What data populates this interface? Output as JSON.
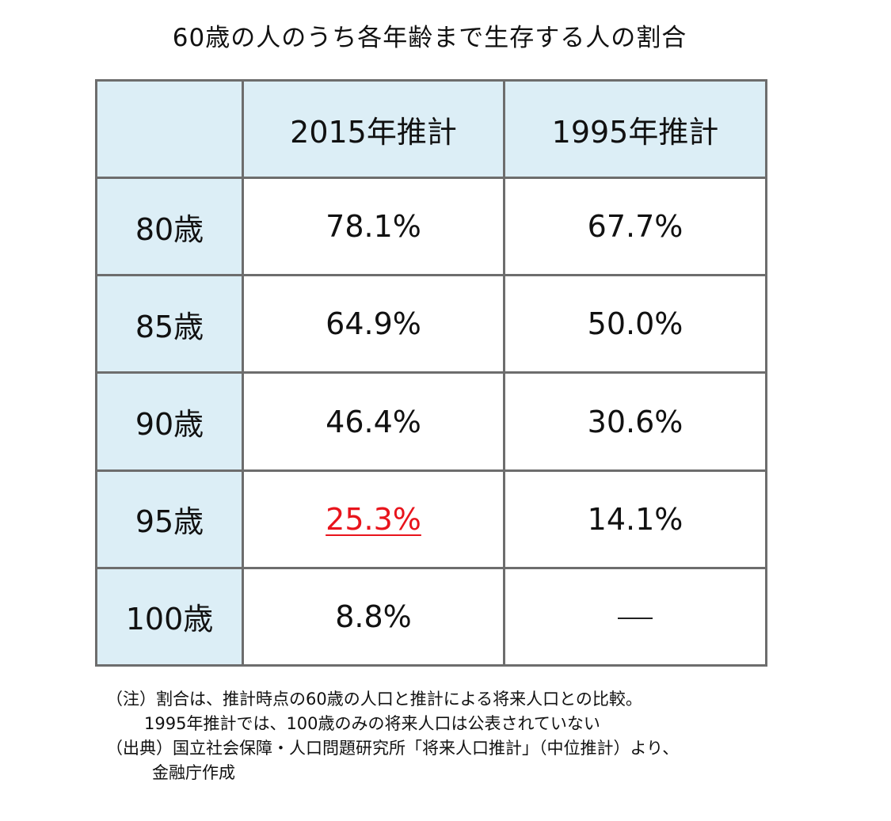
{
  "title": "60歳の人のうち各年齢まで生存する人の割合",
  "chart_data": {
    "type": "table",
    "title": "60歳の人のうち各年齢まで生存する人の割合",
    "columns": [
      "",
      "2015年推計",
      "1995年推計"
    ],
    "rows": [
      {
        "label": "80歳",
        "values": [
          "78.1%",
          "67.7%"
        ]
      },
      {
        "label": "85歳",
        "values": [
          "64.9%",
          "50.0%"
        ]
      },
      {
        "label": "90歳",
        "values": [
          "46.4%",
          "30.6%"
        ]
      },
      {
        "label": "95歳",
        "values": [
          "25.3%",
          "14.1%"
        ]
      },
      {
        "label": "100歳",
        "values": [
          "8.8%",
          "—"
        ]
      }
    ],
    "series": [
      {
        "name": "2015年推計",
        "values": [
          78.1,
          64.9,
          46.4,
          25.3,
          8.8
        ]
      },
      {
        "name": "1995年推計",
        "values": [
          67.7,
          50.0,
          30.6,
          14.1,
          null
        ]
      }
    ],
    "highlight": {
      "row": "95歳",
      "column": "2015年推計",
      "color": "#e8141c"
    }
  },
  "colors": {
    "header_fill": "#dceef6",
    "border": "#6d6d6d",
    "highlight_text": "#e8141c"
  },
  "notes": {
    "line1": "（注）割合は、推計時点の60歳の人口と推計による将来人口との比較。",
    "line2": "1995年推計では、100歳のみの将来人口は公表されていない",
    "line3": "（出典）国立社会保障・人口問題研究所「将来人口推計」（中位推計）より、",
    "line4": "金融庁作成"
  }
}
